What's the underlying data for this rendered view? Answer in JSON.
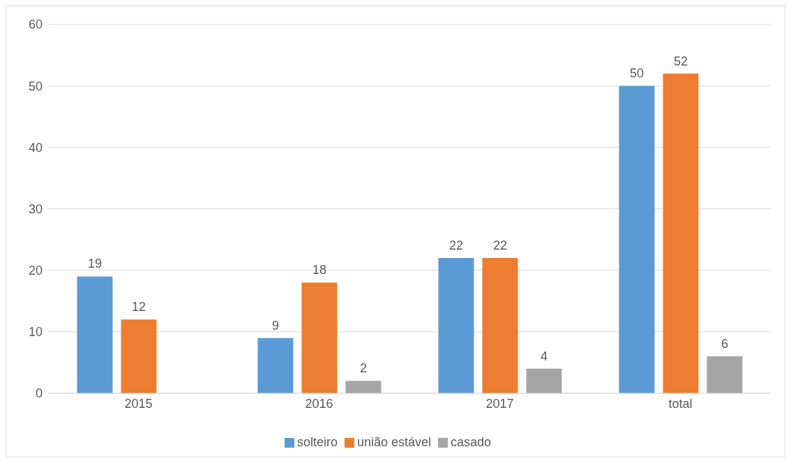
{
  "chart_data": {
    "type": "bar",
    "categories": [
      "2015",
      "2016",
      "2017",
      "total"
    ],
    "series": [
      {
        "name": "solteiro",
        "color": "#5b9bd5",
        "values": [
          19,
          9,
          22,
          50
        ]
      },
      {
        "name": "união estável",
        "color": "#ed7d31",
        "values": [
          12,
          18,
          22,
          52
        ]
      },
      {
        "name": "casado",
        "color": "#a5a5a5",
        "values": [
          null,
          2,
          4,
          6
        ]
      }
    ],
    "ylim": [
      0,
      60
    ],
    "yticks": [
      0,
      10,
      20,
      30,
      40,
      50,
      60
    ],
    "grid": "y",
    "legend": "bottom",
    "data_labels": true
  }
}
